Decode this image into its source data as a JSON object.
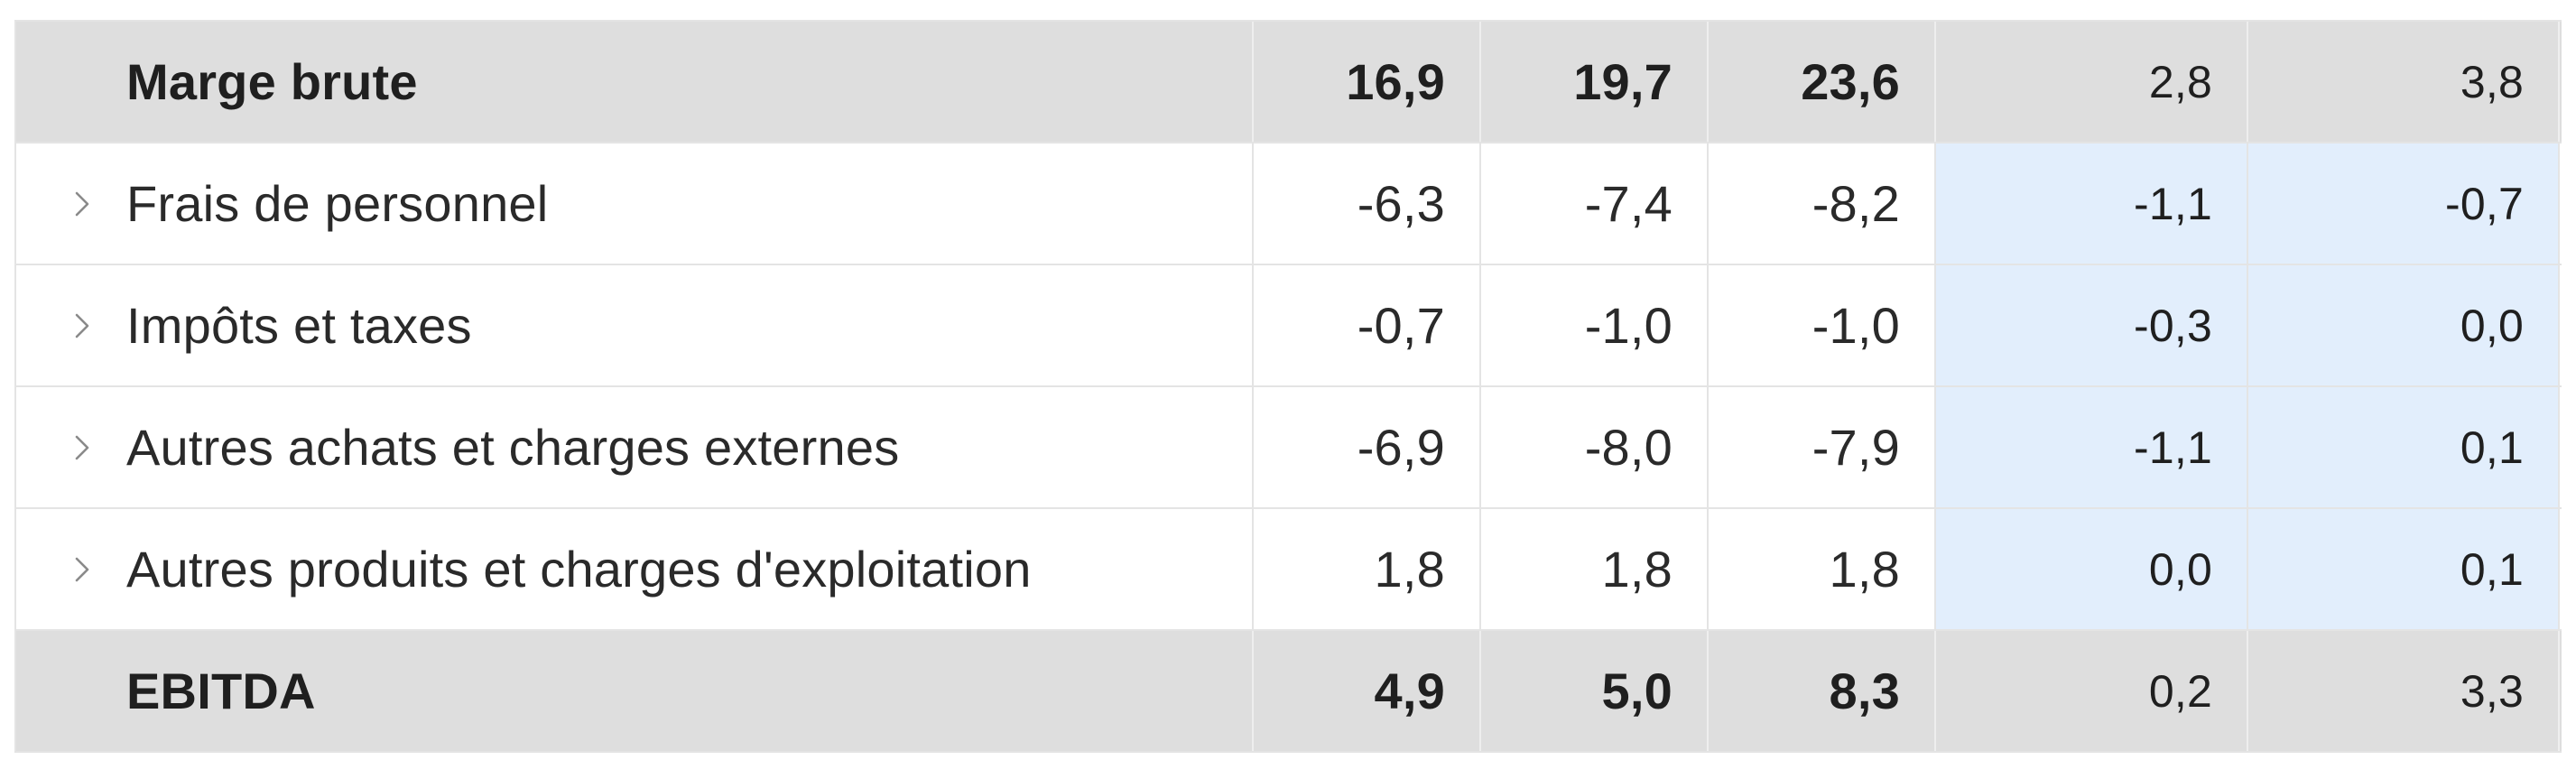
{
  "table": {
    "rows": [
      {
        "kind": "total",
        "label": "Marge brute",
        "v1": "16,9",
        "v2": "19,7",
        "v3": "23,6",
        "var1": "2,8",
        "var2": "3,8"
      },
      {
        "kind": "detail",
        "label": "Frais de personnel",
        "v1": "-6,3",
        "v2": "-7,4",
        "v3": "-8,2",
        "var1": "-1,1",
        "var2": "-0,7"
      },
      {
        "kind": "detail",
        "label": "Impôts et taxes",
        "v1": "-0,7",
        "v2": "-1,0",
        "v3": "-1,0",
        "var1": "-0,3",
        "var2": "0,0"
      },
      {
        "kind": "detail",
        "label": "Autres achats et charges externes",
        "v1": "-6,9",
        "v2": "-8,0",
        "v3": "-7,9",
        "var1": "-1,1",
        "var2": "0,1"
      },
      {
        "kind": "detail",
        "label": "Autres produits et charges d'exploitation",
        "v1": "1,8",
        "v2": "1,8",
        "v3": "1,8",
        "var1": "0,0",
        "var2": "0,1"
      },
      {
        "kind": "total",
        "label": "EBITDA",
        "v1": "4,9",
        "v2": "5,0",
        "v3": "8,3",
        "var1": "0,2",
        "var2": "3,3"
      }
    ]
  },
  "colors": {
    "total_row_bg": "#dedede",
    "variance_highlight_bg": "#e2eefc",
    "grid_line": "#e4e4e4"
  },
  "icons": {
    "expand": "chevron-right-icon"
  }
}
